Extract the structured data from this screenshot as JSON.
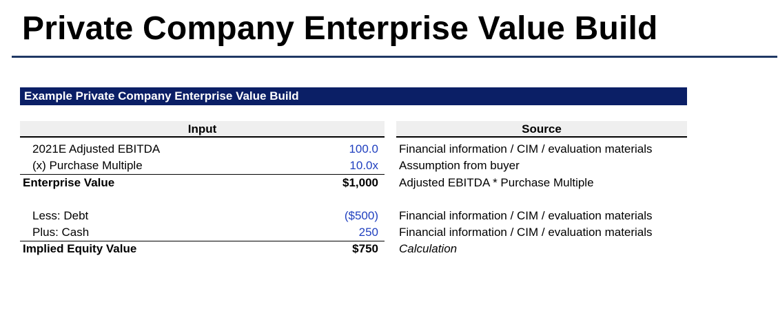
{
  "page": {
    "title": "Private Company Enterprise Value Build"
  },
  "table": {
    "banner": "Example Private Company Enterprise Value Build",
    "headers": {
      "input": "Input",
      "source": "Source"
    },
    "rows": [
      {
        "label": "2021E Adjusted EBITDA",
        "value": "100.0",
        "source": "Financial information / CIM / evaluation materials"
      },
      {
        "label": "(x) Purchase Multiple",
        "value": "10.0x",
        "source": "Assumption from buyer"
      },
      {
        "label": "Enterprise Value",
        "value": "$1,000",
        "source": "Adjusted EBITDA * Purchase Multiple"
      },
      {
        "label": "Less: Debt",
        "value": "($500)",
        "source": "Financial information / CIM / evaluation materials"
      },
      {
        "label": "Plus: Cash",
        "value": "250",
        "source": "Financial information / CIM / evaluation materials"
      },
      {
        "label": "Implied Equity Value",
        "value": "$750",
        "source": "Calculation"
      }
    ]
  },
  "colors": {
    "input_value": "#1f3fbf",
    "banner": "#0b1f66",
    "title_rule": "#1f3864"
  }
}
